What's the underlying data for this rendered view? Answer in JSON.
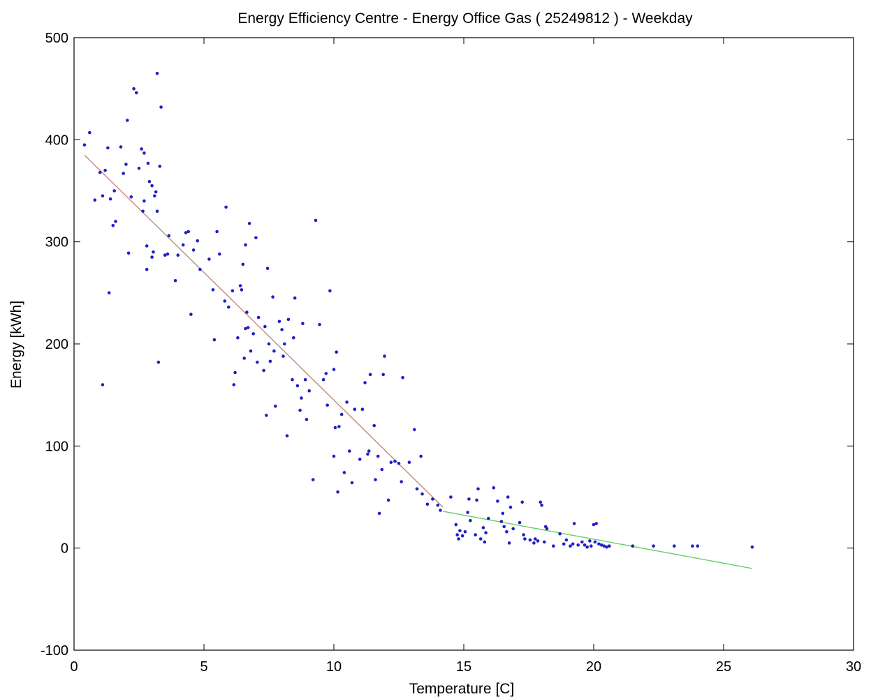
{
  "chart_data": {
    "type": "scatter",
    "title": "Energy Efficiency Centre - Energy Office Gas ( 25249812 ) - Weekday",
    "xlabel": "Temperature [C]",
    "ylabel": "Energy [kWh]",
    "xlim": [
      0,
      30
    ],
    "ylim": [
      -100,
      500
    ],
    "xticks": [
      0,
      5,
      10,
      15,
      20,
      25,
      30
    ],
    "yticks": [
      -100,
      0,
      100,
      200,
      300,
      400,
      500
    ],
    "grid": false,
    "legend": "none",
    "colors": {
      "points": "#1f1fc8",
      "fit_heating": "#c08a78",
      "fit_base": "#66d066",
      "axes": "#000000"
    },
    "series": [
      {
        "type": "scatter",
        "points": [
          [
            0.4,
            395
          ],
          [
            0.6,
            407
          ],
          [
            0.8,
            341
          ],
          [
            1.0,
            368
          ],
          [
            1.1,
            345
          ],
          [
            1.1,
            160
          ],
          [
            1.2,
            370
          ],
          [
            1.3,
            392
          ],
          [
            1.35,
            250
          ],
          [
            1.4,
            342
          ],
          [
            1.5,
            316
          ],
          [
            1.55,
            350
          ],
          [
            1.6,
            320
          ],
          [
            1.8,
            393
          ],
          [
            1.9,
            367
          ],
          [
            2.0,
            376
          ],
          [
            2.05,
            419
          ],
          [
            2.1,
            289
          ],
          [
            2.2,
            344
          ],
          [
            2.3,
            450
          ],
          [
            2.4,
            446
          ],
          [
            2.5,
            372
          ],
          [
            2.6,
            391
          ],
          [
            2.65,
            330
          ],
          [
            2.7,
            340
          ],
          [
            2.7,
            387
          ],
          [
            2.8,
            273
          ],
          [
            2.8,
            296
          ],
          [
            2.85,
            377
          ],
          [
            2.9,
            359
          ],
          [
            3.0,
            355
          ],
          [
            3.0,
            285
          ],
          [
            3.05,
            290
          ],
          [
            3.1,
            345
          ],
          [
            3.15,
            349
          ],
          [
            3.2,
            330
          ],
          [
            3.2,
            465
          ],
          [
            3.25,
            182
          ],
          [
            3.3,
            374
          ],
          [
            3.35,
            432
          ],
          [
            3.5,
            287
          ],
          [
            3.6,
            288
          ],
          [
            3.65,
            306
          ],
          [
            3.9,
            262
          ],
          [
            4.0,
            287
          ],
          [
            4.2,
            297
          ],
          [
            4.3,
            309
          ],
          [
            4.4,
            310
          ],
          [
            4.5,
            229
          ],
          [
            4.6,
            292
          ],
          [
            4.75,
            301
          ],
          [
            4.85,
            273
          ],
          [
            5.2,
            283
          ],
          [
            5.35,
            253
          ],
          [
            5.4,
            204
          ],
          [
            5.5,
            310
          ],
          [
            5.6,
            288
          ],
          [
            5.8,
            242
          ],
          [
            5.85,
            334
          ],
          [
            5.95,
            236
          ],
          [
            6.1,
            252
          ],
          [
            6.15,
            160
          ],
          [
            6.2,
            172
          ],
          [
            6.3,
            206
          ],
          [
            6.4,
            257
          ],
          [
            6.45,
            253
          ],
          [
            6.5,
            278
          ],
          [
            6.55,
            186
          ],
          [
            6.6,
            297
          ],
          [
            6.6,
            215
          ],
          [
            6.65,
            231
          ],
          [
            6.7,
            216
          ],
          [
            6.75,
            318
          ],
          [
            6.8,
            193
          ],
          [
            6.9,
            210
          ],
          [
            7.0,
            304
          ],
          [
            7.05,
            182
          ],
          [
            7.1,
            226
          ],
          [
            7.3,
            174
          ],
          [
            7.35,
            217
          ],
          [
            7.4,
            130
          ],
          [
            7.45,
            274
          ],
          [
            7.5,
            200
          ],
          [
            7.55,
            183
          ],
          [
            7.65,
            246
          ],
          [
            7.7,
            193
          ],
          [
            7.75,
            139
          ],
          [
            7.9,
            222
          ],
          [
            8.0,
            214
          ],
          [
            8.05,
            188
          ],
          [
            8.1,
            200
          ],
          [
            8.2,
            110
          ],
          [
            8.25,
            224
          ],
          [
            8.4,
            165
          ],
          [
            8.45,
            206
          ],
          [
            8.5,
            245
          ],
          [
            8.6,
            159
          ],
          [
            8.7,
            135
          ],
          [
            8.75,
            147
          ],
          [
            8.8,
            220
          ],
          [
            8.9,
            165
          ],
          [
            8.95,
            126
          ],
          [
            9.05,
            154
          ],
          [
            9.2,
            67
          ],
          [
            9.3,
            321
          ],
          [
            9.45,
            219
          ],
          [
            9.6,
            165
          ],
          [
            9.7,
            171
          ],
          [
            9.75,
            140
          ],
          [
            9.85,
            252
          ],
          [
            10.0,
            175
          ],
          [
            10.0,
            90
          ],
          [
            10.05,
            118
          ],
          [
            10.1,
            192
          ],
          [
            10.15,
            55
          ],
          [
            10.2,
            119
          ],
          [
            10.3,
            131
          ],
          [
            10.4,
            74
          ],
          [
            10.5,
            143
          ],
          [
            10.6,
            95
          ],
          [
            10.7,
            64
          ],
          [
            10.8,
            136
          ],
          [
            11.0,
            87
          ],
          [
            11.1,
            136
          ],
          [
            11.2,
            162
          ],
          [
            11.3,
            92
          ],
          [
            11.35,
            95
          ],
          [
            11.4,
            170
          ],
          [
            11.55,
            120
          ],
          [
            11.6,
            67
          ],
          [
            11.7,
            90
          ],
          [
            11.75,
            34
          ],
          [
            11.85,
            77
          ],
          [
            11.9,
            170
          ],
          [
            11.95,
            188
          ],
          [
            12.1,
            47
          ],
          [
            12.2,
            84
          ],
          [
            12.35,
            85
          ],
          [
            12.5,
            83
          ],
          [
            12.6,
            65
          ],
          [
            12.65,
            167
          ],
          [
            12.9,
            84
          ],
          [
            13.1,
            116
          ],
          [
            13.2,
            58
          ],
          [
            13.35,
            90
          ],
          [
            13.4,
            53
          ],
          [
            13.6,
            43
          ],
          [
            13.8,
            48
          ],
          [
            14.0,
            42
          ],
          [
            14.1,
            37
          ],
          [
            14.5,
            50
          ],
          [
            14.7,
            23
          ],
          [
            14.75,
            13
          ],
          [
            14.8,
            9
          ],
          [
            14.85,
            17
          ],
          [
            14.95,
            12
          ],
          [
            15.05,
            16
          ],
          [
            15.15,
            35
          ],
          [
            15.2,
            48
          ],
          [
            15.25,
            27
          ],
          [
            15.45,
            13
          ],
          [
            15.5,
            47
          ],
          [
            15.55,
            58
          ],
          [
            15.65,
            9
          ],
          [
            15.75,
            20
          ],
          [
            15.8,
            6
          ],
          [
            15.85,
            15
          ],
          [
            15.95,
            29
          ],
          [
            16.15,
            59
          ],
          [
            16.3,
            46
          ],
          [
            16.45,
            26
          ],
          [
            16.5,
            34
          ],
          [
            16.55,
            21
          ],
          [
            16.65,
            16
          ],
          [
            16.7,
            50
          ],
          [
            16.75,
            5
          ],
          [
            16.8,
            40
          ],
          [
            16.9,
            19
          ],
          [
            17.15,
            25
          ],
          [
            17.25,
            45
          ],
          [
            17.3,
            13
          ],
          [
            17.35,
            9
          ],
          [
            17.55,
            8
          ],
          [
            17.7,
            5
          ],
          [
            17.75,
            9
          ],
          [
            17.85,
            7
          ],
          [
            17.95,
            45
          ],
          [
            18.0,
            42
          ],
          [
            18.1,
            6
          ],
          [
            18.15,
            21
          ],
          [
            18.2,
            19
          ],
          [
            18.45,
            2
          ],
          [
            18.7,
            14
          ],
          [
            18.85,
            4
          ],
          [
            18.95,
            8
          ],
          [
            19.1,
            2
          ],
          [
            19.2,
            4
          ],
          [
            19.25,
            24
          ],
          [
            19.4,
            3
          ],
          [
            19.55,
            6
          ],
          [
            19.65,
            3
          ],
          [
            19.75,
            1
          ],
          [
            19.85,
            7
          ],
          [
            19.9,
            2
          ],
          [
            20.0,
            23
          ],
          [
            20.05,
            6
          ],
          [
            20.1,
            24
          ],
          [
            20.2,
            4
          ],
          [
            20.3,
            3
          ],
          [
            20.4,
            2
          ],
          [
            20.5,
            1
          ],
          [
            20.6,
            2
          ],
          [
            21.5,
            2
          ],
          [
            22.3,
            2
          ],
          [
            23.1,
            2
          ],
          [
            23.8,
            2
          ],
          [
            24.0,
            2
          ],
          [
            26.1,
            1
          ]
        ]
      },
      {
        "type": "line",
        "x": [
          0.4,
          14.2
        ],
        "y": [
          385,
          40
        ]
      },
      {
        "type": "line",
        "x": [
          14.2,
          26.1
        ],
        "y": [
          36,
          -20
        ]
      }
    ]
  }
}
